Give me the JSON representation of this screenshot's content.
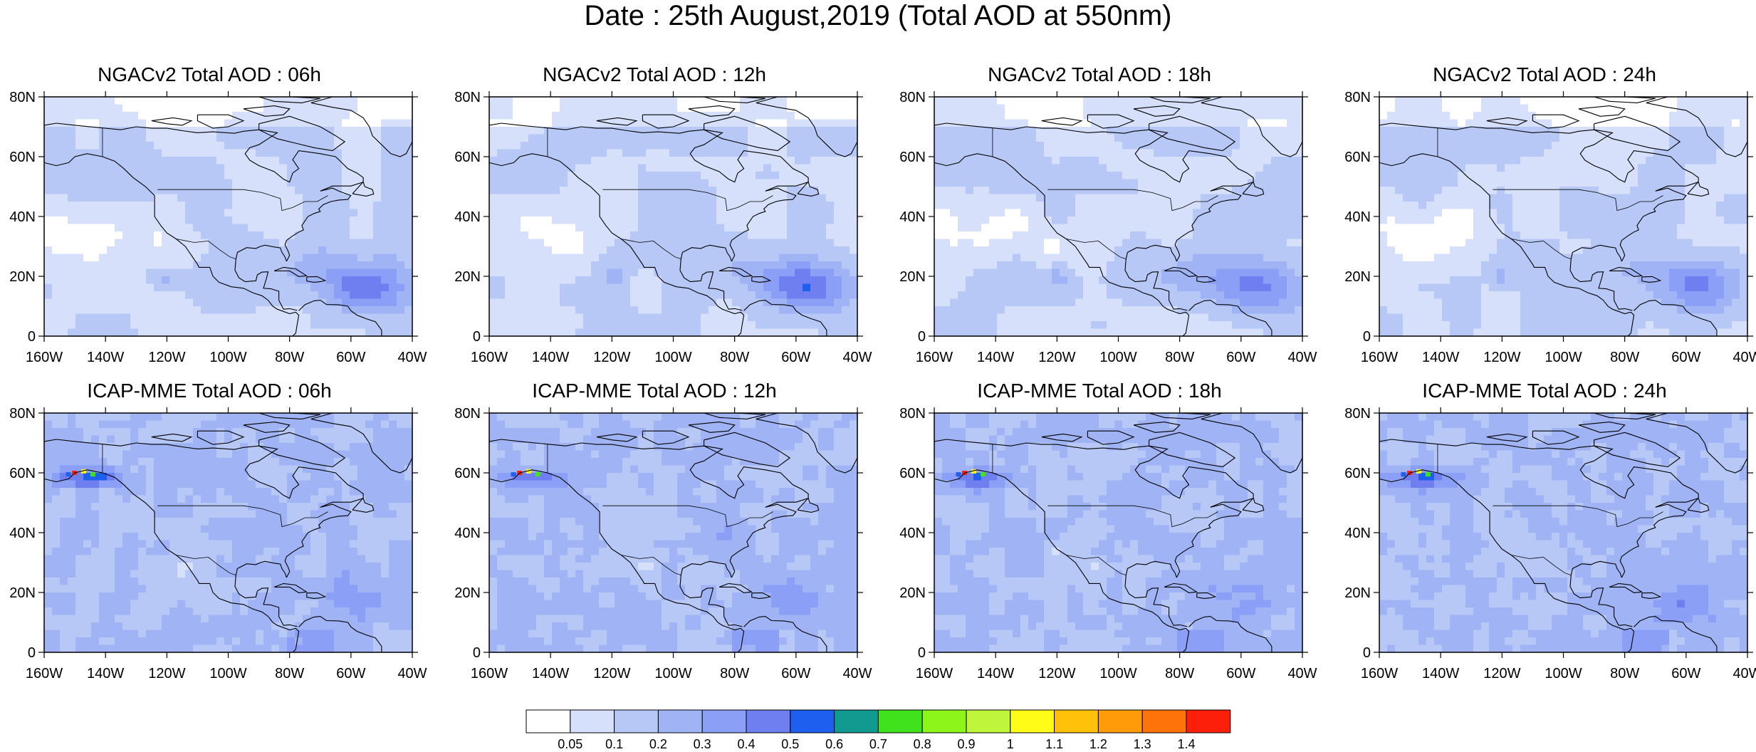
{
  "title": "Date : 25th August,2019 (Total AOD at 550nm)",
  "panels": [
    {
      "title": "NGACv2 Total AOD : 06h",
      "model": "ngac",
      "hour": 6
    },
    {
      "title": "NGACv2 Total AOD : 12h",
      "model": "ngac",
      "hour": 12
    },
    {
      "title": "NGACv2 Total AOD : 18h",
      "model": "ngac",
      "hour": 18
    },
    {
      "title": "NGACv2 Total AOD : 24h",
      "model": "ngac",
      "hour": 24
    },
    {
      "title": "ICAP-MME Total AOD : 06h",
      "model": "icap",
      "hour": 6
    },
    {
      "title": "ICAP-MME Total AOD : 12h",
      "model": "icap",
      "hour": 12
    },
    {
      "title": "ICAP-MME Total AOD : 18h",
      "model": "icap",
      "hour": 18
    },
    {
      "title": "ICAP-MME Total AOD : 24h",
      "model": "icap",
      "hour": 24
    }
  ],
  "axes": {
    "lat_ticks": [
      "0",
      "20N",
      "40N",
      "60N",
      "80N"
    ],
    "lat_values": [
      0,
      20,
      40,
      60,
      80
    ],
    "lon_ticks": [
      "160W",
      "140W",
      "120W",
      "100W",
      "80W",
      "60W",
      "40W"
    ],
    "lon_values": [
      -160,
      -140,
      -120,
      -100,
      -80,
      -60,
      -40
    ],
    "lat_range": [
      0,
      80
    ],
    "lon_range": [
      -160,
      -40
    ]
  },
  "colorbar": {
    "labels": [
      "0.05",
      "0.1",
      "0.2",
      "0.3",
      "0.4",
      "0.5",
      "0.6",
      "0.7",
      "0.8",
      "0.9",
      "1",
      "1.1",
      "1.2",
      "1.3",
      "1.4"
    ],
    "colors": [
      "#ffffff",
      "#d6e0fb",
      "#b7c8f7",
      "#9fb3f5",
      "#8a9ff5",
      "#6f7ff0",
      "#1f5ff0",
      "#119a8f",
      "#3fe21c",
      "#8df51a",
      "#bff53a",
      "#fffc18",
      "#ffc10a",
      "#ff9a08",
      "#ff7408",
      "#fc200b"
    ]
  }
}
